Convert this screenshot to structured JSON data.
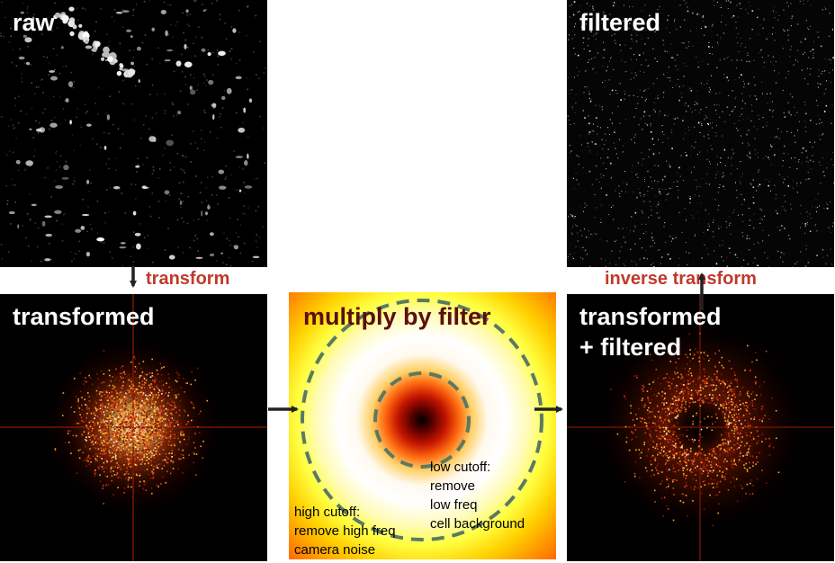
{
  "panels": {
    "raw": {
      "title": "raw"
    },
    "filtered": {
      "title": "filtered"
    },
    "transformed": {
      "title": "transformed"
    },
    "filter": {
      "title": "multiply by filter"
    },
    "transformed_filtered": {
      "title": "transformed\n+ filtered"
    }
  },
  "arrows": {
    "transform_label": "transform",
    "inverse_label": "inverse transform"
  },
  "annotations": {
    "low_cutoff": "low cutoff:\nremove\nlow freq\ncell background",
    "high_cutoff": "high cutoff:\nremove high freq\ncamera noise"
  },
  "colors": {
    "label_red": "#c0392b",
    "dashed_circle": "#5a7a62",
    "arrow": "#222222"
  }
}
